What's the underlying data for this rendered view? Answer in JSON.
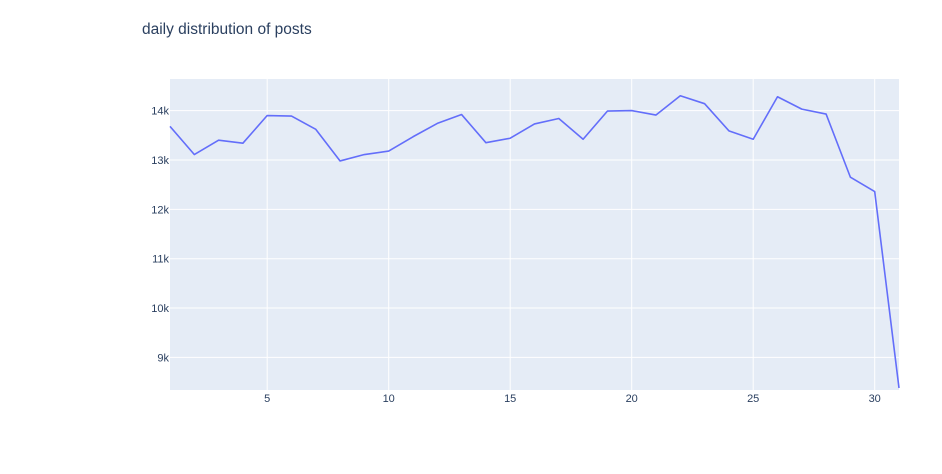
{
  "chart_data": {
    "type": "line",
    "title": "daily distribution of posts",
    "xlabel": "",
    "ylabel": "",
    "x": [
      1,
      2,
      3,
      4,
      5,
      6,
      7,
      8,
      9,
      10,
      11,
      12,
      13,
      14,
      15,
      16,
      17,
      18,
      19,
      20,
      21,
      22,
      23,
      24,
      25,
      26,
      27,
      28,
      29,
      30,
      31
    ],
    "series": [
      {
        "values": [
          13680,
          13110,
          13400,
          13340,
          13900,
          13890,
          13620,
          12980,
          13110,
          13180,
          13470,
          13740,
          13920,
          13350,
          13440,
          13730,
          13840,
          13420,
          13990,
          14000,
          13910,
          14300,
          14140,
          13590,
          13420,
          14280,
          14030,
          13930,
          12650,
          12360,
          8380
        ],
        "color": "#636efa"
      }
    ],
    "xlim": [
      1,
      31
    ],
    "ylim": [
      8340,
      14640
    ],
    "x_ticks": [
      5,
      10,
      15,
      20,
      25,
      30
    ],
    "x_tick_labels": [
      "5",
      "10",
      "15",
      "20",
      "25",
      "30"
    ],
    "y_ticks": [
      9000,
      10000,
      11000,
      12000,
      13000,
      14000
    ],
    "y_tick_labels": [
      "9k",
      "10k",
      "11k",
      "12k",
      "13k",
      "14k"
    ],
    "grid": true,
    "plot_bg": "#e5ecf6",
    "grid_color": "#ffffff"
  }
}
